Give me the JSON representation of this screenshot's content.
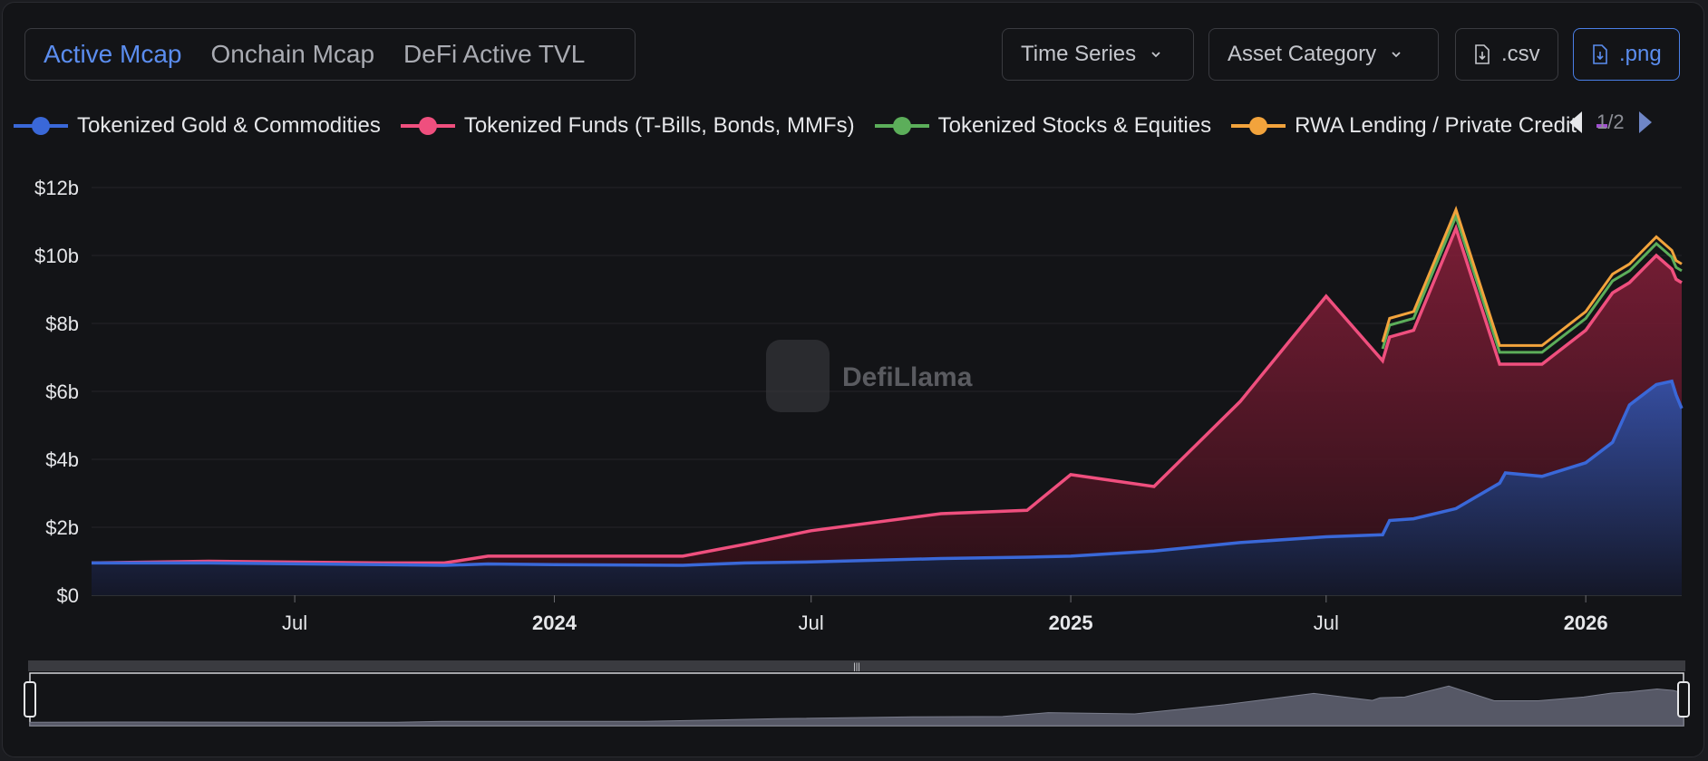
{
  "tabs": [
    {
      "label": "Active Mcap",
      "active": true
    },
    {
      "label": "Onchain Mcap",
      "active": false
    },
    {
      "label": "DeFi Active TVL",
      "active": false
    }
  ],
  "controls": {
    "time_series": "Time Series",
    "asset_category": "Asset Category",
    "csv": ".csv",
    "png": ".png"
  },
  "pager": {
    "label": "1/2"
  },
  "colors": {
    "accent": "#5b8def",
    "gold": "#3a68d8",
    "funds": "#ef4f7e",
    "stocks": "#5cae5a",
    "lending": "#f2a33c",
    "extra": "#a14fd1"
  },
  "watermark": "DefiLlama",
  "chart_data": {
    "type": "area",
    "stacked": true,
    "ylim": [
      0,
      12
    ],
    "y_ticks": [
      {
        "value": 0,
        "label": "$0"
      },
      {
        "value": 2,
        "label": "$2b"
      },
      {
        "value": 4,
        "label": "$4b"
      },
      {
        "value": 6,
        "label": "$6b"
      },
      {
        "value": 8,
        "label": "$8b"
      },
      {
        "value": 10,
        "label": "$10b"
      },
      {
        "value": 12,
        "label": "$12b"
      }
    ],
    "x_ticks": [
      {
        "date": "2023-07-01",
        "label": "Jul",
        "bold": false
      },
      {
        "date": "2024-01-01",
        "label": "2024",
        "bold": true
      },
      {
        "date": "2024-07-01",
        "label": "Jul",
        "bold": false
      },
      {
        "date": "2025-01-01",
        "label": "2025",
        "bold": true
      },
      {
        "date": "2025-07-01",
        "label": "Jul",
        "bold": false
      },
      {
        "date": "2026-01-01",
        "label": "2026",
        "bold": true
      }
    ],
    "x_range": [
      "2023-02-07",
      "2026-03-10"
    ],
    "legend_placement": "top",
    "series": [
      {
        "name": "Tokenized Gold & Commodities",
        "color": "#3a68d8",
        "points": [
          [
            "2023-02-07",
            0.95
          ],
          [
            "2023-05-01",
            0.95
          ],
          [
            "2023-09-01",
            0.9
          ],
          [
            "2023-10-15",
            0.88
          ],
          [
            "2023-11-15",
            0.92
          ],
          [
            "2024-01-01",
            0.9
          ],
          [
            "2024-04-01",
            0.88
          ],
          [
            "2024-05-15",
            0.95
          ],
          [
            "2024-07-01",
            0.98
          ],
          [
            "2024-10-01",
            1.08
          ],
          [
            "2024-12-01",
            1.12
          ],
          [
            "2025-01-01",
            1.15
          ],
          [
            "2025-03-01",
            1.3
          ],
          [
            "2025-05-01",
            1.55
          ],
          [
            "2025-07-01",
            1.72
          ],
          [
            "2025-08-10",
            1.78
          ],
          [
            "2025-08-15",
            2.2
          ],
          [
            "2025-09-01",
            2.25
          ],
          [
            "2025-10-01",
            2.55
          ],
          [
            "2025-11-01",
            3.3
          ],
          [
            "2025-11-05",
            3.6
          ],
          [
            "2025-12-01",
            3.5
          ],
          [
            "2026-01-01",
            3.9
          ],
          [
            "2026-01-20",
            4.5
          ],
          [
            "2026-02-01",
            5.6
          ],
          [
            "2026-02-20",
            6.2
          ],
          [
            "2026-03-03",
            6.3
          ],
          [
            "2026-03-06",
            5.9
          ],
          [
            "2026-03-10",
            5.5
          ]
        ]
      },
      {
        "name": "Tokenized Funds (T-Bills, Bonds, MMFs)",
        "color": "#ef4f7e",
        "points": [
          [
            "2023-02-07",
            0.95
          ],
          [
            "2023-05-01",
            1.0
          ],
          [
            "2023-09-01",
            0.95
          ],
          [
            "2023-10-15",
            0.95
          ],
          [
            "2023-11-15",
            1.15
          ],
          [
            "2024-01-01",
            1.15
          ],
          [
            "2024-04-01",
            1.15
          ],
          [
            "2024-05-15",
            1.5
          ],
          [
            "2024-07-01",
            1.9
          ],
          [
            "2024-10-01",
            2.4
          ],
          [
            "2024-12-01",
            2.5
          ],
          [
            "2025-01-01",
            3.55
          ],
          [
            "2025-03-01",
            3.2
          ],
          [
            "2025-05-01",
            5.7
          ],
          [
            "2025-07-01",
            8.8
          ],
          [
            "2025-08-10",
            6.9
          ],
          [
            "2025-08-15",
            7.6
          ],
          [
            "2025-09-01",
            7.8
          ],
          [
            "2025-10-01",
            10.8
          ],
          [
            "2025-11-01",
            6.8
          ],
          [
            "2025-11-05",
            6.8
          ],
          [
            "2025-12-01",
            6.8
          ],
          [
            "2026-01-01",
            7.8
          ],
          [
            "2026-01-20",
            8.9
          ],
          [
            "2026-02-01",
            9.2
          ],
          [
            "2026-02-20",
            10.0
          ],
          [
            "2026-03-03",
            9.6
          ],
          [
            "2026-03-06",
            9.3
          ],
          [
            "2026-03-10",
            9.2
          ]
        ]
      },
      {
        "name": "Tokenized Stocks & Equities",
        "color": "#5cae5a"
      },
      {
        "name": "RWA Lending / Private Credit",
        "color": "#f2a33c"
      }
    ]
  }
}
